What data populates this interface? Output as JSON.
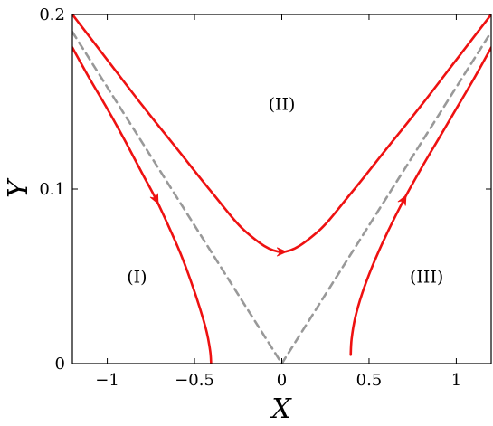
{
  "chart_data": {
    "type": "line",
    "xlabel": "X",
    "ylabel": "Y",
    "xlim": [
      -1.2,
      1.2
    ],
    "ylim": [
      0,
      0.2
    ],
    "grid": false,
    "xticks": [
      {
        "value": -1,
        "label": "−1"
      },
      {
        "value": -0.5,
        "label": "−0.5"
      },
      {
        "value": 0,
        "label": "0"
      },
      {
        "value": 0.5,
        "label": "0.5"
      },
      {
        "value": 1,
        "label": "1"
      }
    ],
    "yticks": [
      {
        "value": 0,
        "label": "0"
      },
      {
        "value": 0.1,
        "label": "0.1"
      },
      {
        "value": 0.2,
        "label": "0.2"
      }
    ],
    "colors": {
      "trajectory": "#ee1111",
      "separatrix": "#999999"
    },
    "series": [
      {
        "id": "separatrix-left",
        "style": "dashed",
        "x": [
          -1.2,
          0
        ],
        "y": [
          0.19,
          0
        ]
      },
      {
        "id": "separatrix-right",
        "style": "dashed",
        "x": [
          0,
          1.2
        ],
        "y": [
          0,
          0.19
        ]
      },
      {
        "id": "trajectory-II",
        "style": "solid",
        "arrow": {
          "x": 0,
          "direction": "right"
        },
        "x": [
          -1.2,
          -1.0,
          -0.8,
          -0.6,
          -0.4,
          -0.2,
          0,
          0.2,
          0.4,
          0.6,
          0.8,
          1.0,
          1.2
        ],
        "y": [
          0.2,
          0.174,
          0.148,
          0.123,
          0.098,
          0.075,
          0.064,
          0.075,
          0.098,
          0.123,
          0.148,
          0.174,
          0.2
        ]
      },
      {
        "id": "trajectory-I",
        "style": "solid",
        "arrow": {
          "x": -0.72,
          "direction": "down"
        },
        "x": [
          -1.2,
          -1.1,
          -1.0,
          -0.9,
          -0.8,
          -0.72,
          -0.65,
          -0.58,
          -0.52,
          -0.47,
          -0.43,
          -0.41,
          -0.405
        ],
        "y": [
          0.181,
          0.163,
          0.146,
          0.128,
          0.109,
          0.094,
          0.079,
          0.063,
          0.047,
          0.032,
          0.018,
          0.007,
          0.0
        ]
      },
      {
        "id": "trajectory-III",
        "style": "solid",
        "arrow": {
          "x": 0.7,
          "direction": "up"
        },
        "x": [
          0.395,
          0.4,
          0.42,
          0.46,
          0.52,
          0.6,
          0.7,
          0.8,
          0.9,
          1.0,
          1.1,
          1.2
        ],
        "y": [
          0.005,
          0.014,
          0.026,
          0.04,
          0.056,
          0.074,
          0.094,
          0.112,
          0.129,
          0.146,
          0.163,
          0.181
        ]
      }
    ],
    "annotations": [
      {
        "text": "(I)",
        "x": -0.83,
        "y": 0.05
      },
      {
        "text": "(II)",
        "x": 0,
        "y": 0.149
      },
      {
        "text": "(III)",
        "x": 0.83,
        "y": 0.05
      }
    ]
  }
}
